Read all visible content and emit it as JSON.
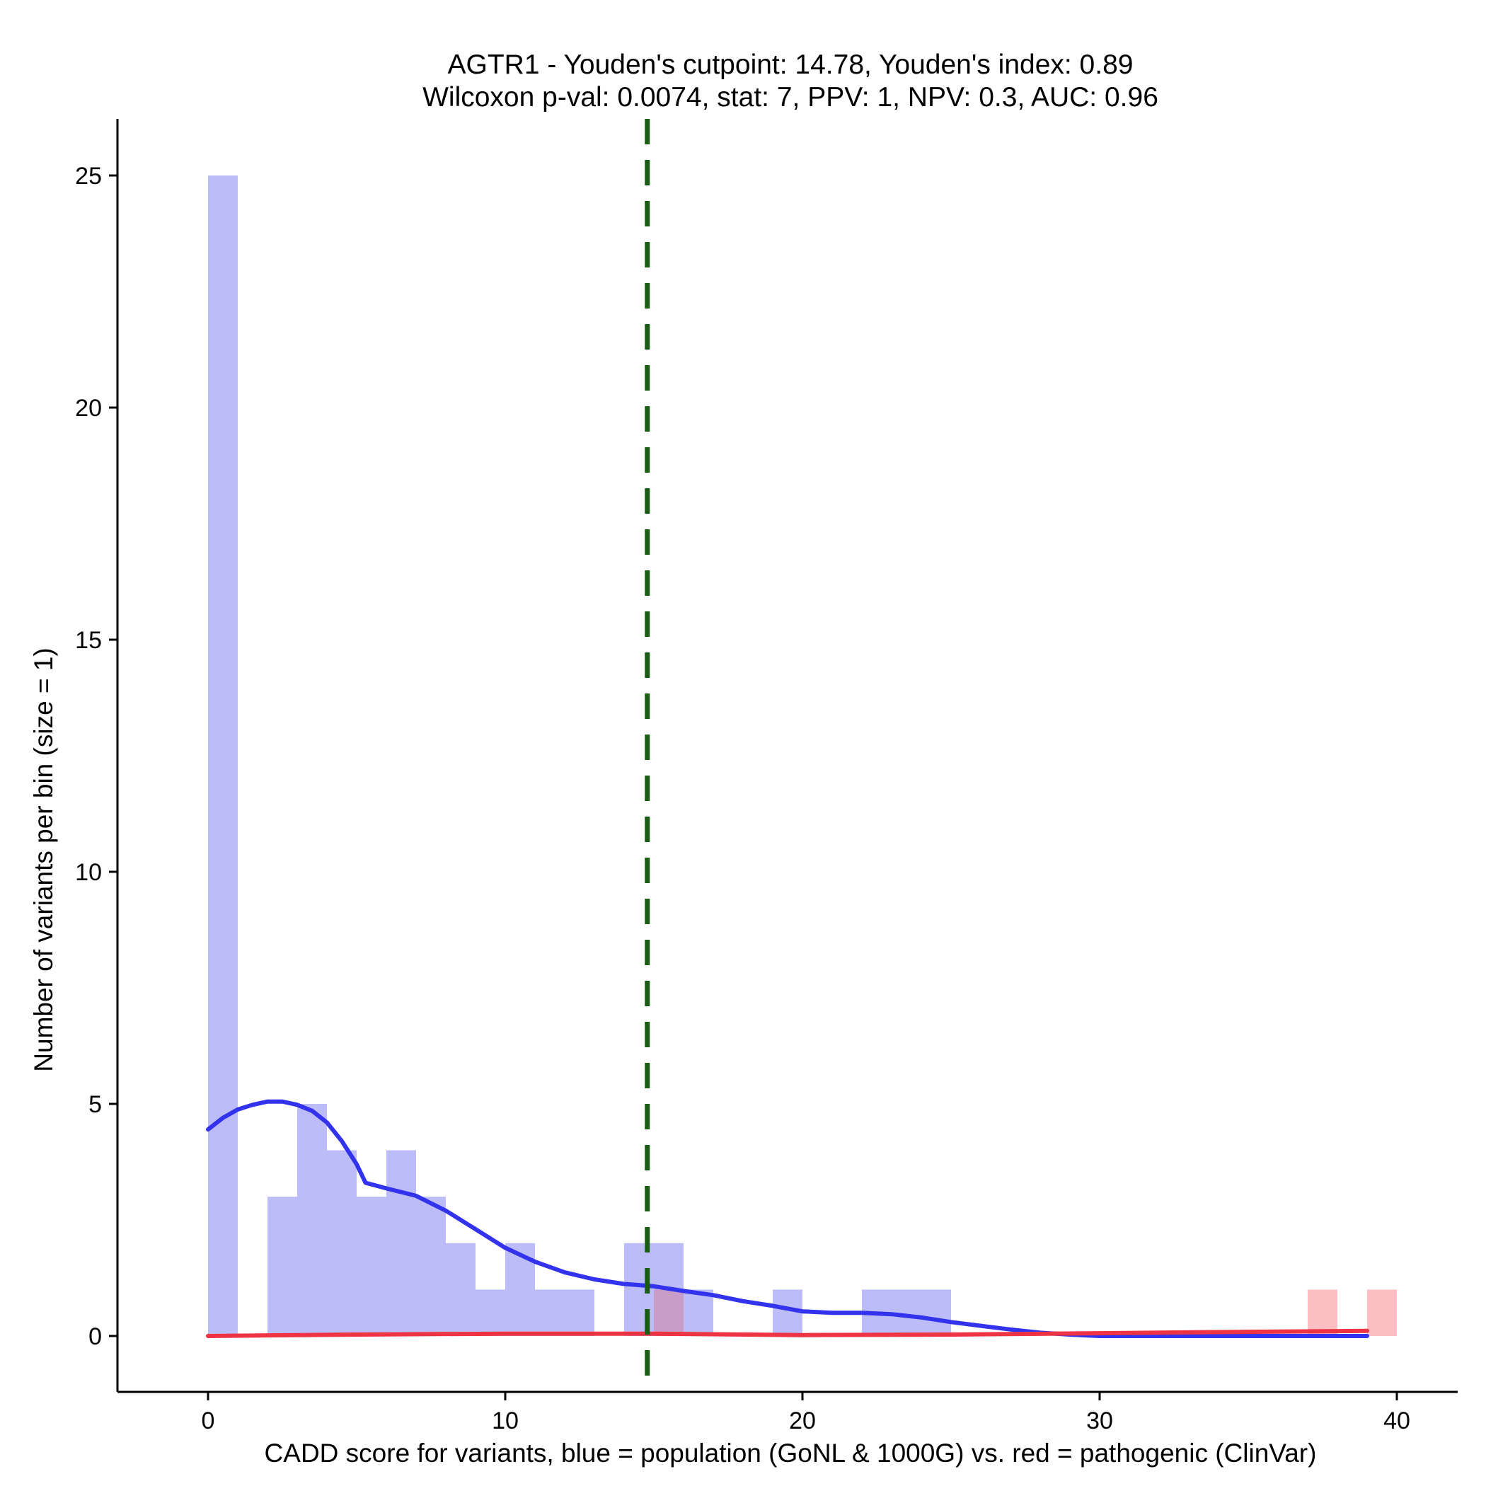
{
  "chart_data": {
    "type": "histogram",
    "title": [
      "AGTR1 - Youden's cutpoint: 14.78, Youden's index: 0.89",
      "Wilcoxon p-val: 0.0074, stat: 7, PPV: 1, NPV: 0.3, AUC: 0.96"
    ],
    "xlabel": "CADD score for variants, blue = population (GoNL & 1000G) vs. red = pathogenic (ClinVar)",
    "ylabel": "Number of variants per bin (size = 1)",
    "xlim": [
      -3,
      42
    ],
    "ylim": [
      -1.25,
      26.25
    ],
    "xticks": [
      0,
      10,
      20,
      30,
      40
    ],
    "yticks": [
      0,
      5,
      10,
      15,
      20,
      25
    ],
    "bin_size": 1,
    "cutpoint": 14.78,
    "colors": {
      "population_bar": "#bcbcf8",
      "pathogenic_bar": "#fcc0c4",
      "overlap_bar": "#c89ec8",
      "population_density": "#3333ee",
      "pathogenic_density": "#ee3344",
      "cutpoint_line": "#1a5c14"
    },
    "series": [
      {
        "kind": "histogram",
        "bins": [
          {
            "x0": 0,
            "count": 25
          },
          {
            "x0": 2,
            "count": 3
          },
          {
            "x0": 3,
            "count": 5
          },
          {
            "x0": 4,
            "count": 4
          },
          {
            "x0": 5,
            "count": 3
          },
          {
            "x0": 6,
            "count": 4
          },
          {
            "x0": 7,
            "count": 3
          },
          {
            "x0": 8,
            "count": 2
          },
          {
            "x0": 9,
            "count": 1
          },
          {
            "x0": 10,
            "count": 2
          },
          {
            "x0": 11,
            "count": 1
          },
          {
            "x0": 12,
            "count": 1
          },
          {
            "x0": 14,
            "count": 2
          },
          {
            "x0": 15,
            "count": 2
          },
          {
            "x0": 16,
            "count": 1
          },
          {
            "x0": 19,
            "count": 1
          },
          {
            "x0": 22,
            "count": 1
          },
          {
            "x0": 23,
            "count": 1
          },
          {
            "x0": 24,
            "count": 1
          }
        ]
      },
      {
        "kind": "histogram",
        "bins": [
          {
            "x0": 15,
            "count": 1
          },
          {
            "x0": 37,
            "count": 1
          },
          {
            "x0": 39,
            "count": 1
          }
        ]
      },
      {
        "kind": "density",
        "points": [
          [
            0,
            4.45
          ],
          [
            0.5,
            4.7
          ],
          [
            1,
            4.88
          ],
          [
            1.5,
            4.98
          ],
          [
            2,
            5.05
          ],
          [
            2.5,
            5.05
          ],
          [
            3,
            4.98
          ],
          [
            3.5,
            4.85
          ],
          [
            4,
            4.6
          ],
          [
            4.5,
            4.2
          ],
          [
            5,
            3.7
          ],
          [
            5.3,
            3.3
          ],
          [
            6,
            3.18
          ],
          [
            7,
            3.02
          ],
          [
            8,
            2.7
          ],
          [
            9,
            2.3
          ],
          [
            10,
            1.9
          ],
          [
            11,
            1.6
          ],
          [
            12,
            1.37
          ],
          [
            13,
            1.22
          ],
          [
            14,
            1.12
          ],
          [
            15,
            1.07
          ],
          [
            16,
            0.97
          ],
          [
            17,
            0.88
          ],
          [
            18,
            0.75
          ],
          [
            19,
            0.65
          ],
          [
            20,
            0.53
          ],
          [
            21,
            0.5
          ],
          [
            22,
            0.5
          ],
          [
            23,
            0.47
          ],
          [
            24,
            0.4
          ],
          [
            25,
            0.3
          ],
          [
            26,
            0.22
          ],
          [
            27,
            0.14
          ],
          [
            28,
            0.07
          ],
          [
            29,
            0.03
          ],
          [
            30,
            0.0
          ],
          [
            32,
            0.0
          ],
          [
            34,
            0.0
          ],
          [
            36,
            0.0
          ],
          [
            38,
            0.0
          ],
          [
            39,
            0.0
          ]
        ]
      },
      {
        "kind": "density",
        "points": [
          [
            0,
            0.0
          ],
          [
            5,
            0.03
          ],
          [
            10,
            0.05
          ],
          [
            15,
            0.05
          ],
          [
            20,
            0.02
          ],
          [
            25,
            0.03
          ],
          [
            30,
            0.06
          ],
          [
            35,
            0.09
          ],
          [
            39,
            0.11
          ]
        ]
      }
    ]
  }
}
